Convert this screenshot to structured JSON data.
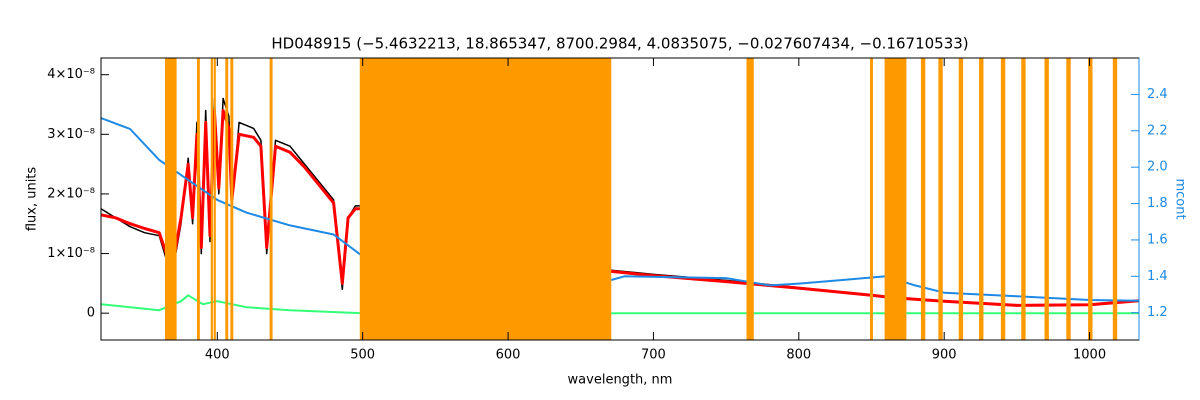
{
  "chart_data": {
    "type": "line",
    "title": "HD048915   (−5.4632213, 18.865347, 8700.2984, 4.0835075, −0.027607434, −0.16710533)",
    "xlabel": "wavelength, nm",
    "ylabel": "flux, units",
    "y2label": "mcont",
    "xlim": [
      320,
      1034
    ],
    "ylim": [
      -4.5e-09,
      4.28e-08
    ],
    "y2lim": [
      1.05,
      2.6
    ],
    "xticks": [
      400,
      500,
      600,
      700,
      800,
      900,
      1000
    ],
    "yticks": [
      0,
      {
        "value": 1e-08,
        "label": "1×10⁻⁸"
      },
      {
        "value": 2e-08,
        "label": "2×10⁻⁸"
      },
      {
        "value": 3e-08,
        "label": "3×10⁻⁸"
      },
      {
        "value": 4e-08,
        "label": "4×10⁻⁸"
      }
    ],
    "y2ticks": [
      1.2,
      1.4,
      1.6,
      1.8,
      {
        "value": 2,
        "label": "2.0"
      },
      2.2,
      2.4
    ],
    "mask_color": "#ff9900",
    "masks": [
      [
        364,
        372
      ],
      [
        386,
        388
      ],
      [
        395.5,
        397
      ],
      [
        397.5,
        399
      ],
      [
        405.5,
        407.5
      ],
      [
        409,
        411
      ],
      [
        436,
        438
      ],
      [
        498,
        671
      ],
      [
        764,
        769
      ],
      [
        849,
        851
      ],
      [
        859,
        874
      ],
      [
        884,
        887
      ],
      [
        896,
        899
      ],
      [
        910,
        913
      ],
      [
        924,
        927
      ],
      [
        939,
        942
      ],
      [
        953,
        956
      ],
      [
        969,
        972
      ],
      [
        984,
        987
      ],
      [
        999,
        1002
      ],
      [
        1016,
        1019
      ]
    ],
    "series": [
      {
        "color": "#000000",
        "width": 1.5,
        "x": [
          320,
          330,
          340,
          350,
          360,
          365,
          370,
          375,
          380,
          383,
          386,
          389,
          392,
          395,
          398,
          401,
          404,
          408,
          410,
          415,
          425,
          430,
          434,
          440,
          450,
          460,
          470,
          480,
          486,
          490,
          495,
          500,
          671,
          700,
          750,
          800,
          850,
          870,
          900,
          950,
          1000,
          1034
        ],
        "values": [
          1.75e-08,
          1.6e-08,
          1.45e-08,
          1.35e-08,
          1.3e-08,
          9e-09,
          8e-09,
          1.5e-08,
          2.6e-08,
          1.5e-08,
          3.2e-08,
          1e-08,
          3.4e-08,
          1.2e-08,
          3.6e-08,
          2e-08,
          3.6e-08,
          3.3e-08,
          1.8e-08,
          3.2e-08,
          3.1e-08,
          2.9e-08,
          1e-08,
          2.9e-08,
          2.8e-08,
          2.5e-08,
          2.2e-08,
          1.9e-08,
          4e-09,
          1.6e-08,
          1.8e-08,
          1.8e-08,
          7.2e-09,
          6.5e-09,
          5.5e-09,
          4.3e-09,
          3e-09,
          2.5e-09,
          2e-09,
          1.3e-09,
          1.5e-09,
          2.2e-09
        ]
      },
      {
        "color": "#ff0000",
        "width": 3,
        "x": [
          320,
          330,
          340,
          350,
          360,
          365,
          370,
          375,
          380,
          383,
          386,
          389,
          392,
          395,
          398,
          401,
          404,
          408,
          410,
          415,
          425,
          430,
          434,
          440,
          450,
          460,
          470,
          480,
          486,
          490,
          495,
          500,
          671,
          700,
          750,
          800,
          850,
          870,
          900,
          950,
          1000,
          1034
        ],
        "values": [
          1.65e-08,
          1.6e-08,
          1.5e-08,
          1.42e-08,
          1.35e-08,
          1e-08,
          9e-09,
          1.6e-08,
          2.5e-08,
          1.6e-08,
          3e-08,
          1.1e-08,
          3.2e-08,
          1.3e-08,
          3.4e-08,
          2.1e-08,
          3.4e-08,
          3.1e-08,
          1.9e-08,
          3e-08,
          2.95e-08,
          2.8e-08,
          1.1e-08,
          2.8e-08,
          2.7e-08,
          2.45e-08,
          2.15e-08,
          1.85e-08,
          5e-09,
          1.6e-08,
          1.75e-08,
          1.75e-08,
          7e-09,
          6.3e-09,
          5.3e-09,
          4.2e-09,
          3e-09,
          2.5e-09,
          2e-09,
          1.3e-09,
          1.4e-09,
          2.1e-09
        ]
      },
      {
        "color": "#33ff77",
        "width": 2,
        "x": [
          320,
          340,
          360,
          375,
          380,
          390,
          400,
          420,
          450,
          500,
          671,
          1034
        ],
        "values": [
          1.5e-09,
          1e-09,
          5e-10,
          2e-09,
          3e-09,
          1.5e-09,
          2e-09,
          1e-09,
          5e-10,
          0,
          0,
          0
        ]
      },
      {
        "color": "#1e8ae6",
        "width": 2,
        "axis": "y2",
        "x": [
          320,
          340,
          360,
          380,
          400,
          420,
          450,
          480,
          500,
          null,
          671,
          680,
          750,
          780,
          800,
          830,
          860,
          880,
          900,
          950,
          1000,
          1034
        ],
        "values": [
          2.27,
          2.21,
          2.04,
          1.93,
          1.82,
          1.75,
          1.68,
          1.63,
          1.51,
          null,
          1.38,
          1.4,
          1.39,
          1.35,
          1.36,
          1.38,
          1.4,
          1.35,
          1.31,
          1.29,
          1.27,
          1.266
        ]
      }
    ]
  }
}
